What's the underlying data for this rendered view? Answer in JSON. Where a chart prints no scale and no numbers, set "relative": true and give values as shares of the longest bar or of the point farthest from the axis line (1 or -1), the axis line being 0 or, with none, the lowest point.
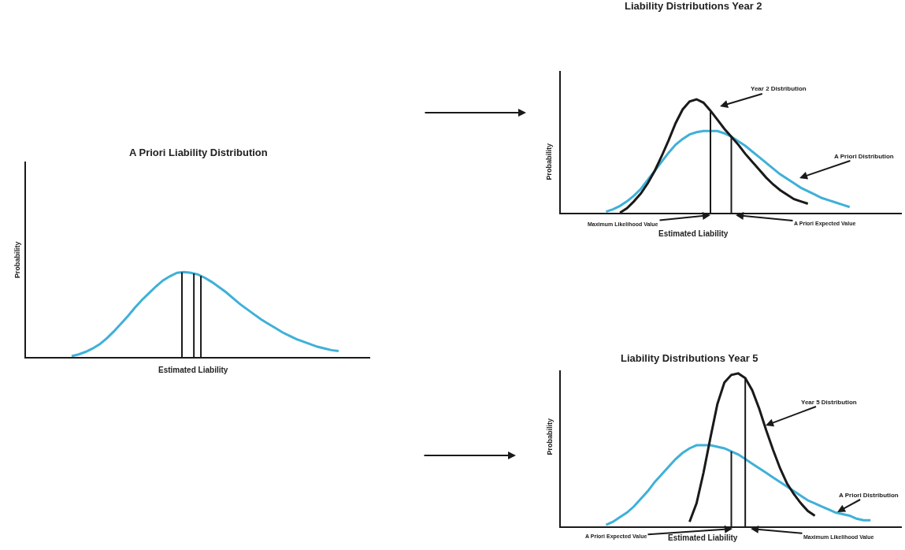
{
  "chart_data": [
    {
      "type": "line",
      "title": "A Priori Liability Distribution",
      "xlabel": "Estimated Liability",
      "ylabel": "Probability",
      "relative": true,
      "categories": [
        null,
        null,
        null,
        null,
        null,
        null,
        null,
        null,
        null,
        null,
        null,
        null,
        null,
        null,
        null,
        null,
        null,
        null,
        null,
        null,
        null,
        null,
        null,
        null,
        null,
        null,
        null,
        null,
        null,
        null,
        null,
        null,
        null,
        null,
        null,
        null,
        null,
        null,
        null,
        null,
        null,
        null,
        null,
        null,
        null,
        null,
        null,
        null,
        null
      ],
      "series": [
        {
          "color": "#3fb0d8",
          "values": [
            null,
            null,
            null,
            null,
            null,
            null,
            0.01,
            0.03,
            0.06,
            0.1,
            0.15,
            0.22,
            0.3,
            0.39,
            0.48,
            0.58,
            0.67,
            0.75,
            0.83,
            0.9,
            0.95,
            0.99,
            1.0,
            0.99,
            0.97,
            0.93,
            0.88,
            0.82,
            0.76,
            0.69,
            0.62,
            0.56,
            0.5,
            0.44,
            0.39,
            0.34,
            0.29,
            0.25,
            0.21,
            0.18,
            0.15,
            0.12,
            0.1,
            0.08,
            0.07,
            null,
            null,
            null,
            null
          ]
        }
      ]
    },
    {
      "type": "line",
      "title": "Liability Distributions Year 2",
      "xlabel": "Estimated Liability",
      "ylabel": "Probability",
      "relative": true,
      "annotations": [
        "Maximum Likelihood Value",
        "A Priori Expected Value"
      ],
      "categories": [
        null,
        null,
        null,
        null,
        null,
        null,
        null,
        null,
        null,
        null,
        null,
        null,
        null,
        null,
        null,
        null,
        null,
        null,
        null,
        null,
        null,
        null,
        null,
        null,
        null,
        null,
        null,
        null,
        null,
        null,
        null,
        null,
        null,
        null,
        null,
        null,
        null,
        null,
        null,
        null,
        null,
        null,
        null,
        null,
        null,
        null,
        null,
        null,
        null
      ],
      "series": [
        {
          "name": "A Priori Distribution",
          "color": "#3fb0d8",
          "values": [
            null,
            null,
            null,
            null,
            null,
            null,
            0.01,
            0.03,
            0.06,
            0.1,
            0.15,
            0.21,
            0.29,
            0.37,
            0.45,
            0.53,
            0.6,
            0.65,
            0.69,
            0.71,
            0.72,
            0.72,
            0.72,
            0.7,
            0.67,
            0.63,
            0.59,
            0.54,
            0.49,
            0.44,
            0.39,
            0.34,
            0.3,
            0.26,
            0.22,
            0.19,
            0.16,
            0.13,
            0.11,
            0.09,
            0.07,
            0.05,
            null,
            null,
            null,
            null,
            null,
            null,
            null
          ]
        },
        {
          "name": "Year 2 Distribution",
          "color": "#1a1a1a",
          "values": [
            null,
            null,
            null,
            null,
            null,
            null,
            null,
            null,
            0.0,
            0.04,
            0.1,
            0.17,
            0.26,
            0.37,
            0.5,
            0.64,
            0.79,
            0.91,
            0.98,
            1.0,
            0.97,
            0.9,
            0.82,
            0.74,
            0.67,
            0.6,
            0.52,
            0.45,
            0.38,
            0.31,
            0.25,
            0.2,
            0.16,
            0.12,
            0.1,
            0.08,
            null,
            null,
            null,
            null,
            null,
            null,
            null,
            null,
            null,
            null,
            null,
            null,
            null
          ]
        }
      ]
    },
    {
      "type": "line",
      "title": "Liability Distributions Year 5",
      "xlabel": "Estimated Liability",
      "ylabel": "Probability",
      "relative": true,
      "annotations": [
        "A Priori Expected Value",
        "Maximum Likelihood Value"
      ],
      "categories": [
        null,
        null,
        null,
        null,
        null,
        null,
        null,
        null,
        null,
        null,
        null,
        null,
        null,
        null,
        null,
        null,
        null,
        null,
        null,
        null,
        null,
        null,
        null,
        null,
        null,
        null,
        null,
        null,
        null,
        null,
        null,
        null,
        null,
        null,
        null,
        null,
        null,
        null,
        null,
        null,
        null,
        null,
        null,
        null,
        null,
        null,
        null,
        null,
        null
      ],
      "series": [
        {
          "name": "A Priori Distribution",
          "color": "#3fb0d8",
          "values": [
            null,
            null,
            null,
            null,
            null,
            null,
            0.01,
            0.03,
            0.06,
            0.09,
            0.13,
            0.18,
            0.23,
            0.29,
            0.34,
            0.39,
            0.44,
            0.48,
            0.51,
            0.53,
            0.53,
            0.53,
            0.52,
            0.51,
            0.49,
            0.47,
            0.44,
            0.41,
            0.38,
            0.35,
            0.32,
            0.29,
            0.26,
            0.23,
            0.2,
            0.17,
            0.15,
            0.13,
            0.11,
            0.09,
            0.08,
            0.07,
            0.05,
            0.04,
            0.04,
            null,
            null,
            null,
            null
          ]
        },
        {
          "name": "Year 5 Distribution",
          "color": "#1a1a1a",
          "values": [
            null,
            null,
            null,
            null,
            null,
            null,
            null,
            null,
            null,
            null,
            null,
            null,
            null,
            null,
            null,
            null,
            null,
            null,
            0.03,
            0.15,
            0.35,
            0.58,
            0.8,
            0.94,
            0.99,
            1.0,
            0.97,
            0.89,
            0.77,
            0.63,
            0.5,
            0.38,
            0.28,
            0.21,
            0.15,
            0.1,
            0.07,
            null,
            null,
            null,
            null,
            null,
            null,
            null,
            null,
            null,
            null,
            null,
            null
          ]
        }
      ]
    }
  ]
}
